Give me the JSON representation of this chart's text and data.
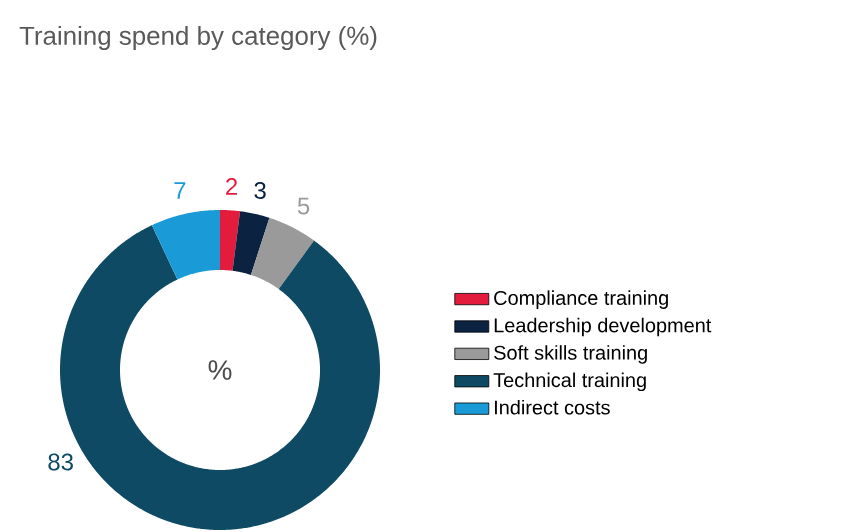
{
  "chart_data": {
    "type": "donut",
    "title": "Training spend by category (%)",
    "categories": [
      "Compliance training",
      "Leadership development",
      "Soft skills training",
      "Technical training",
      "Indirect costs"
    ],
    "values": [
      2,
      3,
      5,
      83,
      7
    ],
    "colors": [
      "#e31c3d",
      "#0b2341",
      "#9a9a9a",
      "#0e4a63",
      "#1a9bd7"
    ],
    "data_labels": true,
    "legend": "right",
    "annotations": [
      "%"
    ]
  }
}
